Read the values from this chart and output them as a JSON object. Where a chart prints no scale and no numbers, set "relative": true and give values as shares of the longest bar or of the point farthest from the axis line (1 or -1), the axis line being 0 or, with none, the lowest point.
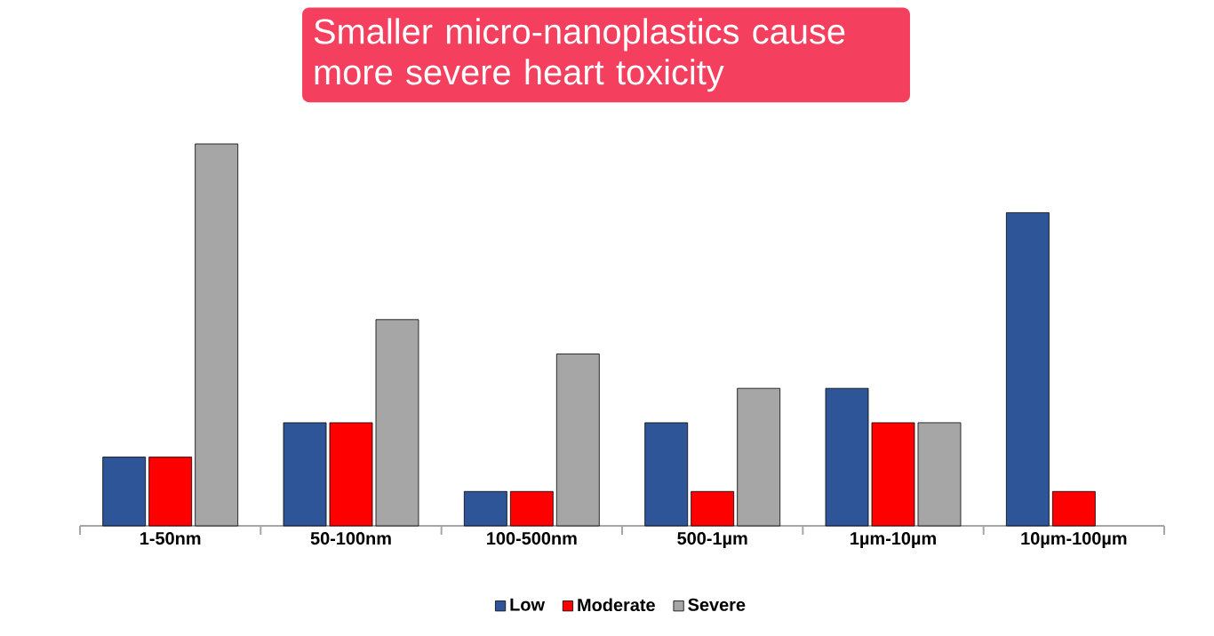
{
  "chart_data": {
    "type": "bar",
    "title": "Smaller micro-nanoplastics cause more severe heart toxicity",
    "relative": true,
    "categories": [
      "1-50nm",
      "50-100nm",
      "100-500nm",
      "500-1µm",
      "1µm-10µm",
      "10µm-100µm"
    ],
    "series": [
      {
        "name": "Low",
        "color": "#2e5597",
        "values": [
          0.18,
          0.27,
          0.09,
          0.27,
          0.36,
          0.82
        ]
      },
      {
        "name": "Moderate",
        "color": "#ff0000",
        "values": [
          0.18,
          0.27,
          0.09,
          0.09,
          0.27,
          0.09
        ]
      },
      {
        "name": "Severe",
        "color": "#a6a6a6",
        "values": [
          1,
          0.54,
          0.45,
          0.36,
          0.27,
          null
        ]
      }
    ],
    "legend": "bottom"
  }
}
